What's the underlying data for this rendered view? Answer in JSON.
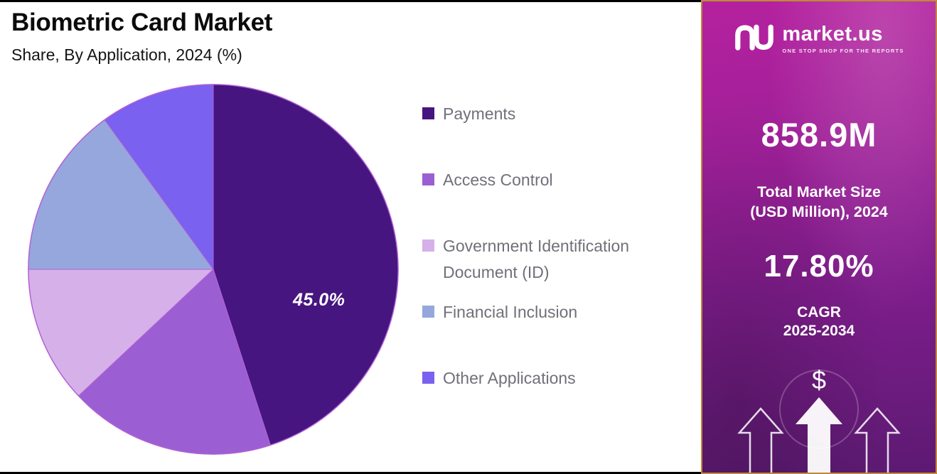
{
  "header": {
    "title": "Biometric Card Market",
    "subtitle": "Share, By Application, 2024 (%)"
  },
  "chart_data": {
    "type": "pie",
    "title": "Biometric Card Market Share, By Application, 2024 (%)",
    "unit": "%",
    "start_angle_deg": 0,
    "direction": "clockwise",
    "legend_position": "right",
    "labels": [
      "Payments",
      "Access Control",
      "Government Identification Document (ID)",
      "Financial Inclusion",
      "Other Applications"
    ],
    "values": [
      45.0,
      18.0,
      12.0,
      15.0,
      10.0
    ],
    "colors": [
      "#46157f",
      "#9b5fd3",
      "#d6b0e8",
      "#95a7dc",
      "#7a61ef"
    ],
    "outline_color": "#b261d6",
    "data_label": {
      "slice": "Payments",
      "text": "45.0%"
    }
  },
  "sidebar": {
    "logo": {
      "brand": "market.us",
      "tagline": "ONE STOP SHOP FOR THE REPORTS"
    },
    "market_size_value": "858.9M",
    "market_size_label_line1": "Total Market Size",
    "market_size_label_line2": "(USD Million), 2024",
    "cagr_value": "17.80%",
    "cagr_label": "CAGR",
    "cagr_period": "2025-2034",
    "dollar_sign": "$",
    "colors": {
      "gradient_top": "#b5219f",
      "gradient_bottom": "#5c1a72",
      "border_gold": "#c0883a"
    }
  }
}
